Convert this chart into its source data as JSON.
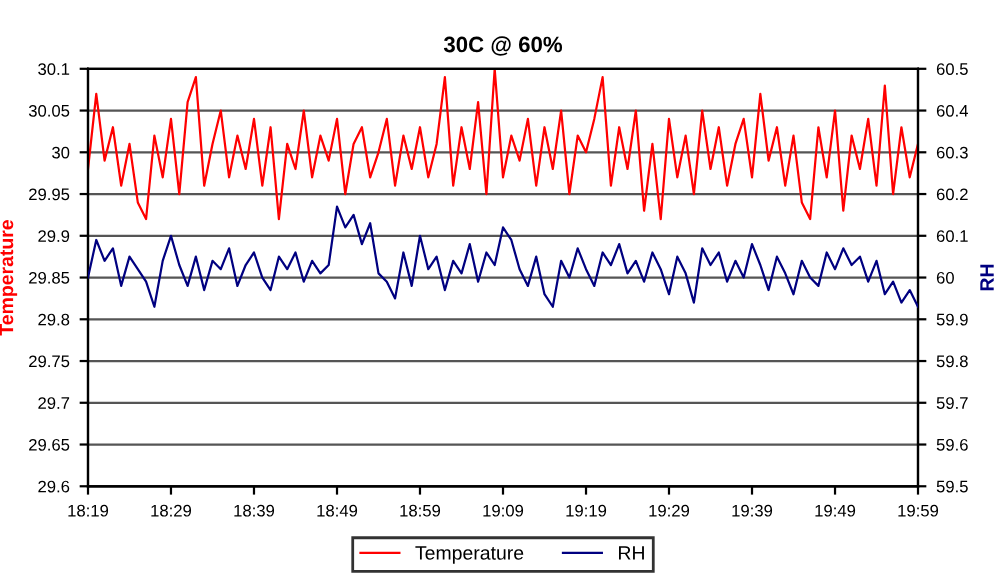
{
  "chart_data": {
    "type": "line",
    "title": "30C @ 60%",
    "ylabel": "Temperature",
    "y2label": "RH",
    "x": [
      18.3167,
      18.3333,
      18.35,
      18.3667,
      18.3833,
      18.4,
      18.4167,
      18.4333,
      18.45,
      18.4667,
      18.4833,
      18.5,
      18.5167,
      18.5333,
      18.55,
      18.5667,
      18.5833,
      18.6,
      18.6167,
      18.6333,
      18.65,
      18.6667,
      18.6833,
      18.7,
      18.7167,
      18.7333,
      18.75,
      18.7667,
      18.7833,
      18.8,
      18.8167,
      18.8333,
      18.85,
      18.8667,
      18.8833,
      18.9,
      18.9167,
      18.9333,
      18.95,
      18.9667,
      18.9833,
      19.0,
      19.0167,
      19.0333,
      19.05,
      19.0667,
      19.0833,
      19.1,
      19.1167,
      19.1333,
      19.15,
      19.1667,
      19.1833,
      19.2,
      19.2167,
      19.2333,
      19.25,
      19.2667,
      19.2833,
      19.3,
      19.3167,
      19.3333,
      19.35,
      19.3667,
      19.3833,
      19.4,
      19.4167,
      19.4333,
      19.45,
      19.4667,
      19.4833,
      19.5,
      19.5167,
      19.5333,
      19.55,
      19.5667,
      19.5833,
      19.6,
      19.6167,
      19.6333,
      19.65,
      19.6667,
      19.6833,
      19.7,
      19.7167,
      19.7333,
      19.75,
      19.7667,
      19.7833,
      19.8,
      19.8167,
      19.8333,
      19.85,
      19.8667,
      19.8833,
      19.9,
      19.9167,
      19.9333,
      19.95,
      19.9667,
      19.9833
    ],
    "series": [
      {
        "name": "Temperature",
        "color": "#ff0000",
        "values": [
          29.98,
          30.07,
          29.99,
          30.03,
          29.96,
          30.01,
          29.94,
          29.92,
          30.02,
          29.97,
          30.04,
          29.95,
          30.06,
          30.09,
          29.96,
          30.01,
          30.05,
          29.97,
          30.02,
          29.98,
          30.04,
          29.96,
          30.03,
          29.92,
          30.01,
          29.98,
          30.05,
          29.97,
          30.02,
          29.99,
          30.04,
          29.95,
          30.01,
          30.03,
          29.97,
          30.0,
          30.04,
          29.96,
          30.02,
          29.98,
          30.03,
          29.97,
          30.01,
          30.09,
          29.96,
          30.03,
          29.98,
          30.06,
          29.95,
          30.1,
          29.97,
          30.02,
          29.99,
          30.04,
          29.96,
          30.03,
          29.98,
          30.05,
          29.95,
          30.02,
          30.0,
          30.04,
          30.09,
          29.96,
          30.03,
          29.98,
          30.05,
          29.93,
          30.01,
          29.92,
          30.04,
          29.97,
          30.02,
          29.95,
          30.05,
          29.98,
          30.03,
          29.96,
          30.01,
          30.04,
          29.97,
          30.07,
          29.99,
          30.03,
          29.96,
          30.02,
          29.94,
          29.92,
          30.03,
          29.97,
          30.05,
          29.93,
          30.02,
          29.98,
          30.04,
          29.96,
          30.08,
          29.95,
          30.03,
          29.97,
          30.01
        ]
      },
      {
        "name": "RH",
        "color": "#000080",
        "axis": "y2",
        "values": [
          60.0,
          60.09,
          60.04,
          60.07,
          59.98,
          60.05,
          60.02,
          59.99,
          59.93,
          60.04,
          60.1,
          60.03,
          59.98,
          60.05,
          59.97,
          60.04,
          60.02,
          60.07,
          59.98,
          60.03,
          60.06,
          60.0,
          59.97,
          60.05,
          60.02,
          60.06,
          59.99,
          60.04,
          60.01,
          60.03,
          60.17,
          60.12,
          60.15,
          60.08,
          60.13,
          60.01,
          59.99,
          59.95,
          60.06,
          59.98,
          60.1,
          60.02,
          60.05,
          59.97,
          60.04,
          60.01,
          60.08,
          59.99,
          60.06,
          60.03,
          60.12,
          60.09,
          60.02,
          59.98,
          60.05,
          59.96,
          59.93,
          60.04,
          60.0,
          60.07,
          60.02,
          59.98,
          60.06,
          60.03,
          60.08,
          60.01,
          60.04,
          59.99,
          60.06,
          60.02,
          59.96,
          60.05,
          60.01,
          59.94,
          60.07,
          60.03,
          60.06,
          59.99,
          60.04,
          60.0,
          60.08,
          60.03,
          59.97,
          60.05,
          60.01,
          59.96,
          60.04,
          60.0,
          59.98,
          60.06,
          60.02,
          60.07,
          60.03,
          60.05,
          59.99,
          60.04,
          59.96,
          59.99,
          59.94,
          59.97,
          59.93
        ]
      }
    ],
    "xlim": [
      18.3167,
      19.9833
    ],
    "xticks": [
      {
        "value": 18.3167,
        "label": "18:19"
      },
      {
        "value": 18.4833,
        "label": "18:29"
      },
      {
        "value": 18.65,
        "label": "18:39"
      },
      {
        "value": 18.8167,
        "label": "18:49"
      },
      {
        "value": 18.9833,
        "label": "18:59"
      },
      {
        "value": 19.15,
        "label": "19:09"
      },
      {
        "value": 19.3167,
        "label": "19:19"
      },
      {
        "value": 19.4833,
        "label": "19:29"
      },
      {
        "value": 19.65,
        "label": "19:39"
      },
      {
        "value": 19.8167,
        "label": "19:49"
      },
      {
        "value": 19.9833,
        "label": "19:59"
      }
    ],
    "ylim": [
      29.6,
      30.1
    ],
    "yticks": [
      29.6,
      29.65,
      29.7,
      29.75,
      29.8,
      29.85,
      29.9,
      29.95,
      30,
      30.05,
      30.1
    ],
    "y2lim": [
      59.5,
      60.5
    ],
    "y2ticks": [
      59.5,
      59.6,
      59.7,
      59.8,
      59.9,
      60,
      60.1,
      60.2,
      60.3,
      60.4,
      60.5
    ],
    "grid": "y",
    "legend": "bottom",
    "marker": "none",
    "line_style": "solid"
  }
}
